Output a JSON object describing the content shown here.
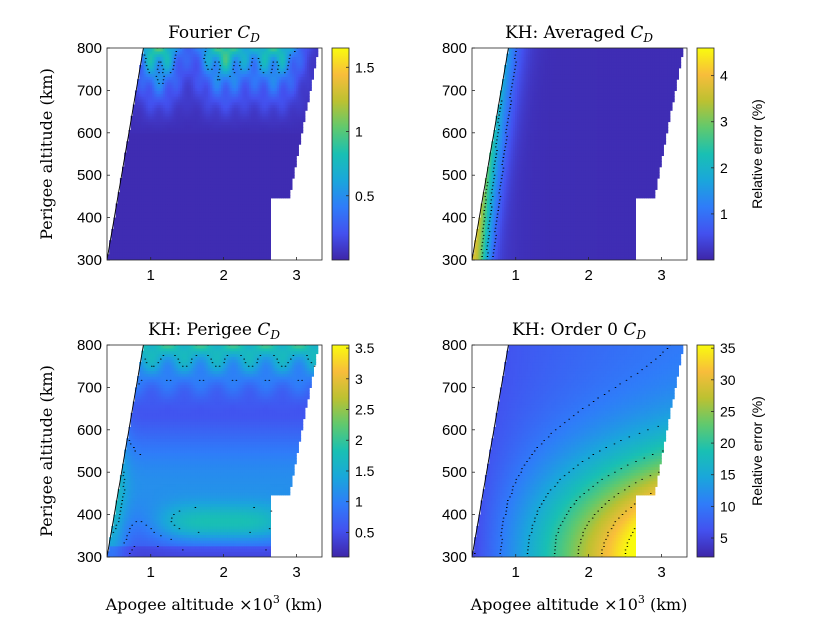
{
  "colors": {
    "parula": [
      "#3e26a8",
      "#4351ef",
      "#2f7cf9",
      "#1aa6db",
      "#19c0b3",
      "#60c96e",
      "#bcc131",
      "#f8bd3b",
      "#f9fb0e"
    ]
  },
  "axes_common": {
    "xlabel": "Apogee altitude ×10",
    "xlabel_exp": "3",
    "xlabel_unit": " (km)",
    "ylabel": "Perigee altitude (km)",
    "xticks": [
      "1",
      "2",
      "3"
    ],
    "yticks": [
      "300",
      "400",
      "500",
      "600",
      "700",
      "800"
    ]
  },
  "chart_data": [
    {
      "type": "heatmap",
      "title": "Fourier ",
      "title_math": "C",
      "title_sub": "D",
      "xlim": [
        0.4,
        3.35
      ],
      "ylim": [
        300,
        800
      ],
      "colorbar": {
        "range": [
          0.0,
          1.65
        ],
        "ticks": [
          "0.5",
          "1",
          "1.5"
        ],
        "tick_values": [
          0.5,
          1.0,
          1.5
        ],
        "label": ""
      },
      "field": "fourier"
    },
    {
      "type": "heatmap",
      "title": "KH: Averaged ",
      "title_math": "C",
      "title_sub": "D",
      "xlim": [
        0.4,
        3.35
      ],
      "ylim": [
        300,
        800
      ],
      "colorbar": {
        "range": [
          0.0,
          4.6
        ],
        "ticks": [
          "1",
          "2",
          "3",
          "4"
        ],
        "tick_values": [
          1,
          2,
          3,
          4
        ],
        "label": "Relative error (%)"
      },
      "field": "averaged"
    },
    {
      "type": "heatmap",
      "title": "KH: Perigee ",
      "title_math": "C",
      "title_sub": "D",
      "xlim": [
        0.4,
        3.35
      ],
      "ylim": [
        300,
        800
      ],
      "colorbar": {
        "range": [
          0.1,
          3.55
        ],
        "ticks": [
          "0.5",
          "1",
          "1.5",
          "2",
          "2.5",
          "3",
          "3.5"
        ],
        "tick_values": [
          0.5,
          1.0,
          1.5,
          2.0,
          2.5,
          3.0,
          3.5
        ],
        "label": ""
      },
      "field": "perigee"
    },
    {
      "type": "heatmap",
      "title": "KH: Order 0 ",
      "title_math": "C",
      "title_sub": "D",
      "xlim": [
        0.4,
        3.35
      ],
      "ylim": [
        300,
        800
      ],
      "colorbar": {
        "range": [
          2,
          35.5
        ],
        "ticks": [
          "5",
          "10",
          "15",
          "20",
          "25",
          "30",
          "35"
        ],
        "tick_values": [
          5,
          10,
          15,
          20,
          25,
          30,
          35
        ],
        "label": "Relative error (%)"
      },
      "field": "order0"
    }
  ]
}
